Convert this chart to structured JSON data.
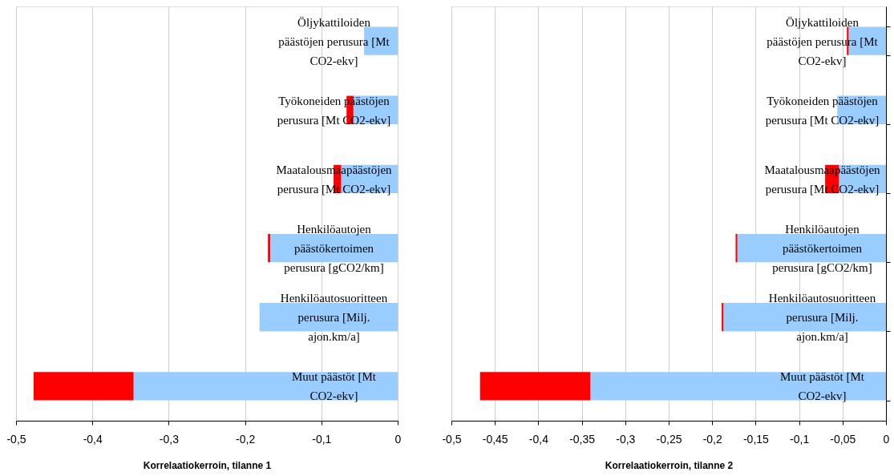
{
  "chart_data": [
    {
      "type": "bar",
      "orientation": "horizontal",
      "stacked": true,
      "categories": [
        "Öljykattiloiden päästöjen perusura [Mt CO2-ekv]",
        "Työkoneiden päästöjen perusura [Mt CO2-ekv]",
        "Maatalousmaapäästöjen perusura [Mt CO2-ekv]",
        "Henkilöautojen päästökertoimen perusura [gCO2/km]",
        "Henkilöautosuoritteen perusura [Milj. ajon.km/a]",
        "Muut päästöt [Mt CO2-ekv]"
      ],
      "series": [
        {
          "color": "#99ccff",
          "values": [
            -0.044,
            -0.058,
            -0.074,
            -0.167,
            -0.181,
            -0.346
          ]
        },
        {
          "color": "#ff0000",
          "values": [
            null,
            -0.009,
            -0.01,
            -0.003,
            null,
            -0.131
          ]
        }
      ],
      "xlabel": "Korrelaatiokerroin, tilanne 1",
      "xlim": [
        -0.5,
        0
      ],
      "xticks": [
        {
          "value": -0.5,
          "label": "-0,5"
        },
        {
          "value": -0.4,
          "label": "-0,4"
        },
        {
          "value": -0.3,
          "label": "-0,3"
        },
        {
          "value": -0.2,
          "label": "-0,2"
        },
        {
          "value": -0.1,
          "label": "-0,1"
        },
        0
      ],
      "grid": "x",
      "legend": false
    },
    {
      "type": "bar",
      "orientation": "horizontal",
      "stacked": true,
      "categories": [
        "Öljykattiloiden päästöjen perusura [Mt CO2-ekv]",
        "Työkoneiden päästöjen perusura [Mt CO2-ekv]",
        "Maatalousmaapäästöjen perusura [Mt CO2-ekv]",
        "Henkilöautojen päästökertoimen perusura [gCO2/km]",
        "Henkilöautosuoritteen perusura [Milj. ajon.km/a]",
        "Muut päästöt [Mt CO2-ekv]"
      ],
      "series": [
        {
          "color": "#99ccff",
          "values": [
            -0.043,
            -0.056,
            -0.054,
            -0.171,
            -0.187,
            -0.34
          ]
        },
        {
          "color": "#ff0000",
          "values": [
            -0.002,
            null,
            -0.016,
            -0.002,
            -0.002,
            -0.127
          ]
        }
      ],
      "xlabel": "Korrelaatiokerroin, tilanne 2",
      "xlim": [
        -0.5,
        0
      ],
      "xticks": [
        {
          "value": -0.5,
          "label": "-0,5"
        },
        {
          "value": -0.45,
          "label": "-0,45"
        },
        {
          "value": -0.4,
          "label": "-0,4"
        },
        {
          "value": -0.35,
          "label": "-0,35"
        },
        {
          "value": -0.3,
          "label": "-0,3"
        },
        {
          "value": -0.25,
          "label": "-0,25"
        },
        {
          "value": -0.2,
          "label": "-0,2"
        },
        {
          "value": -0.15,
          "label": "-0,15"
        },
        {
          "value": -0.1,
          "label": "-0,1"
        },
        {
          "value": -0.05,
          "label": "-0,05"
        },
        0
      ],
      "grid": "x",
      "legend": false
    }
  ]
}
